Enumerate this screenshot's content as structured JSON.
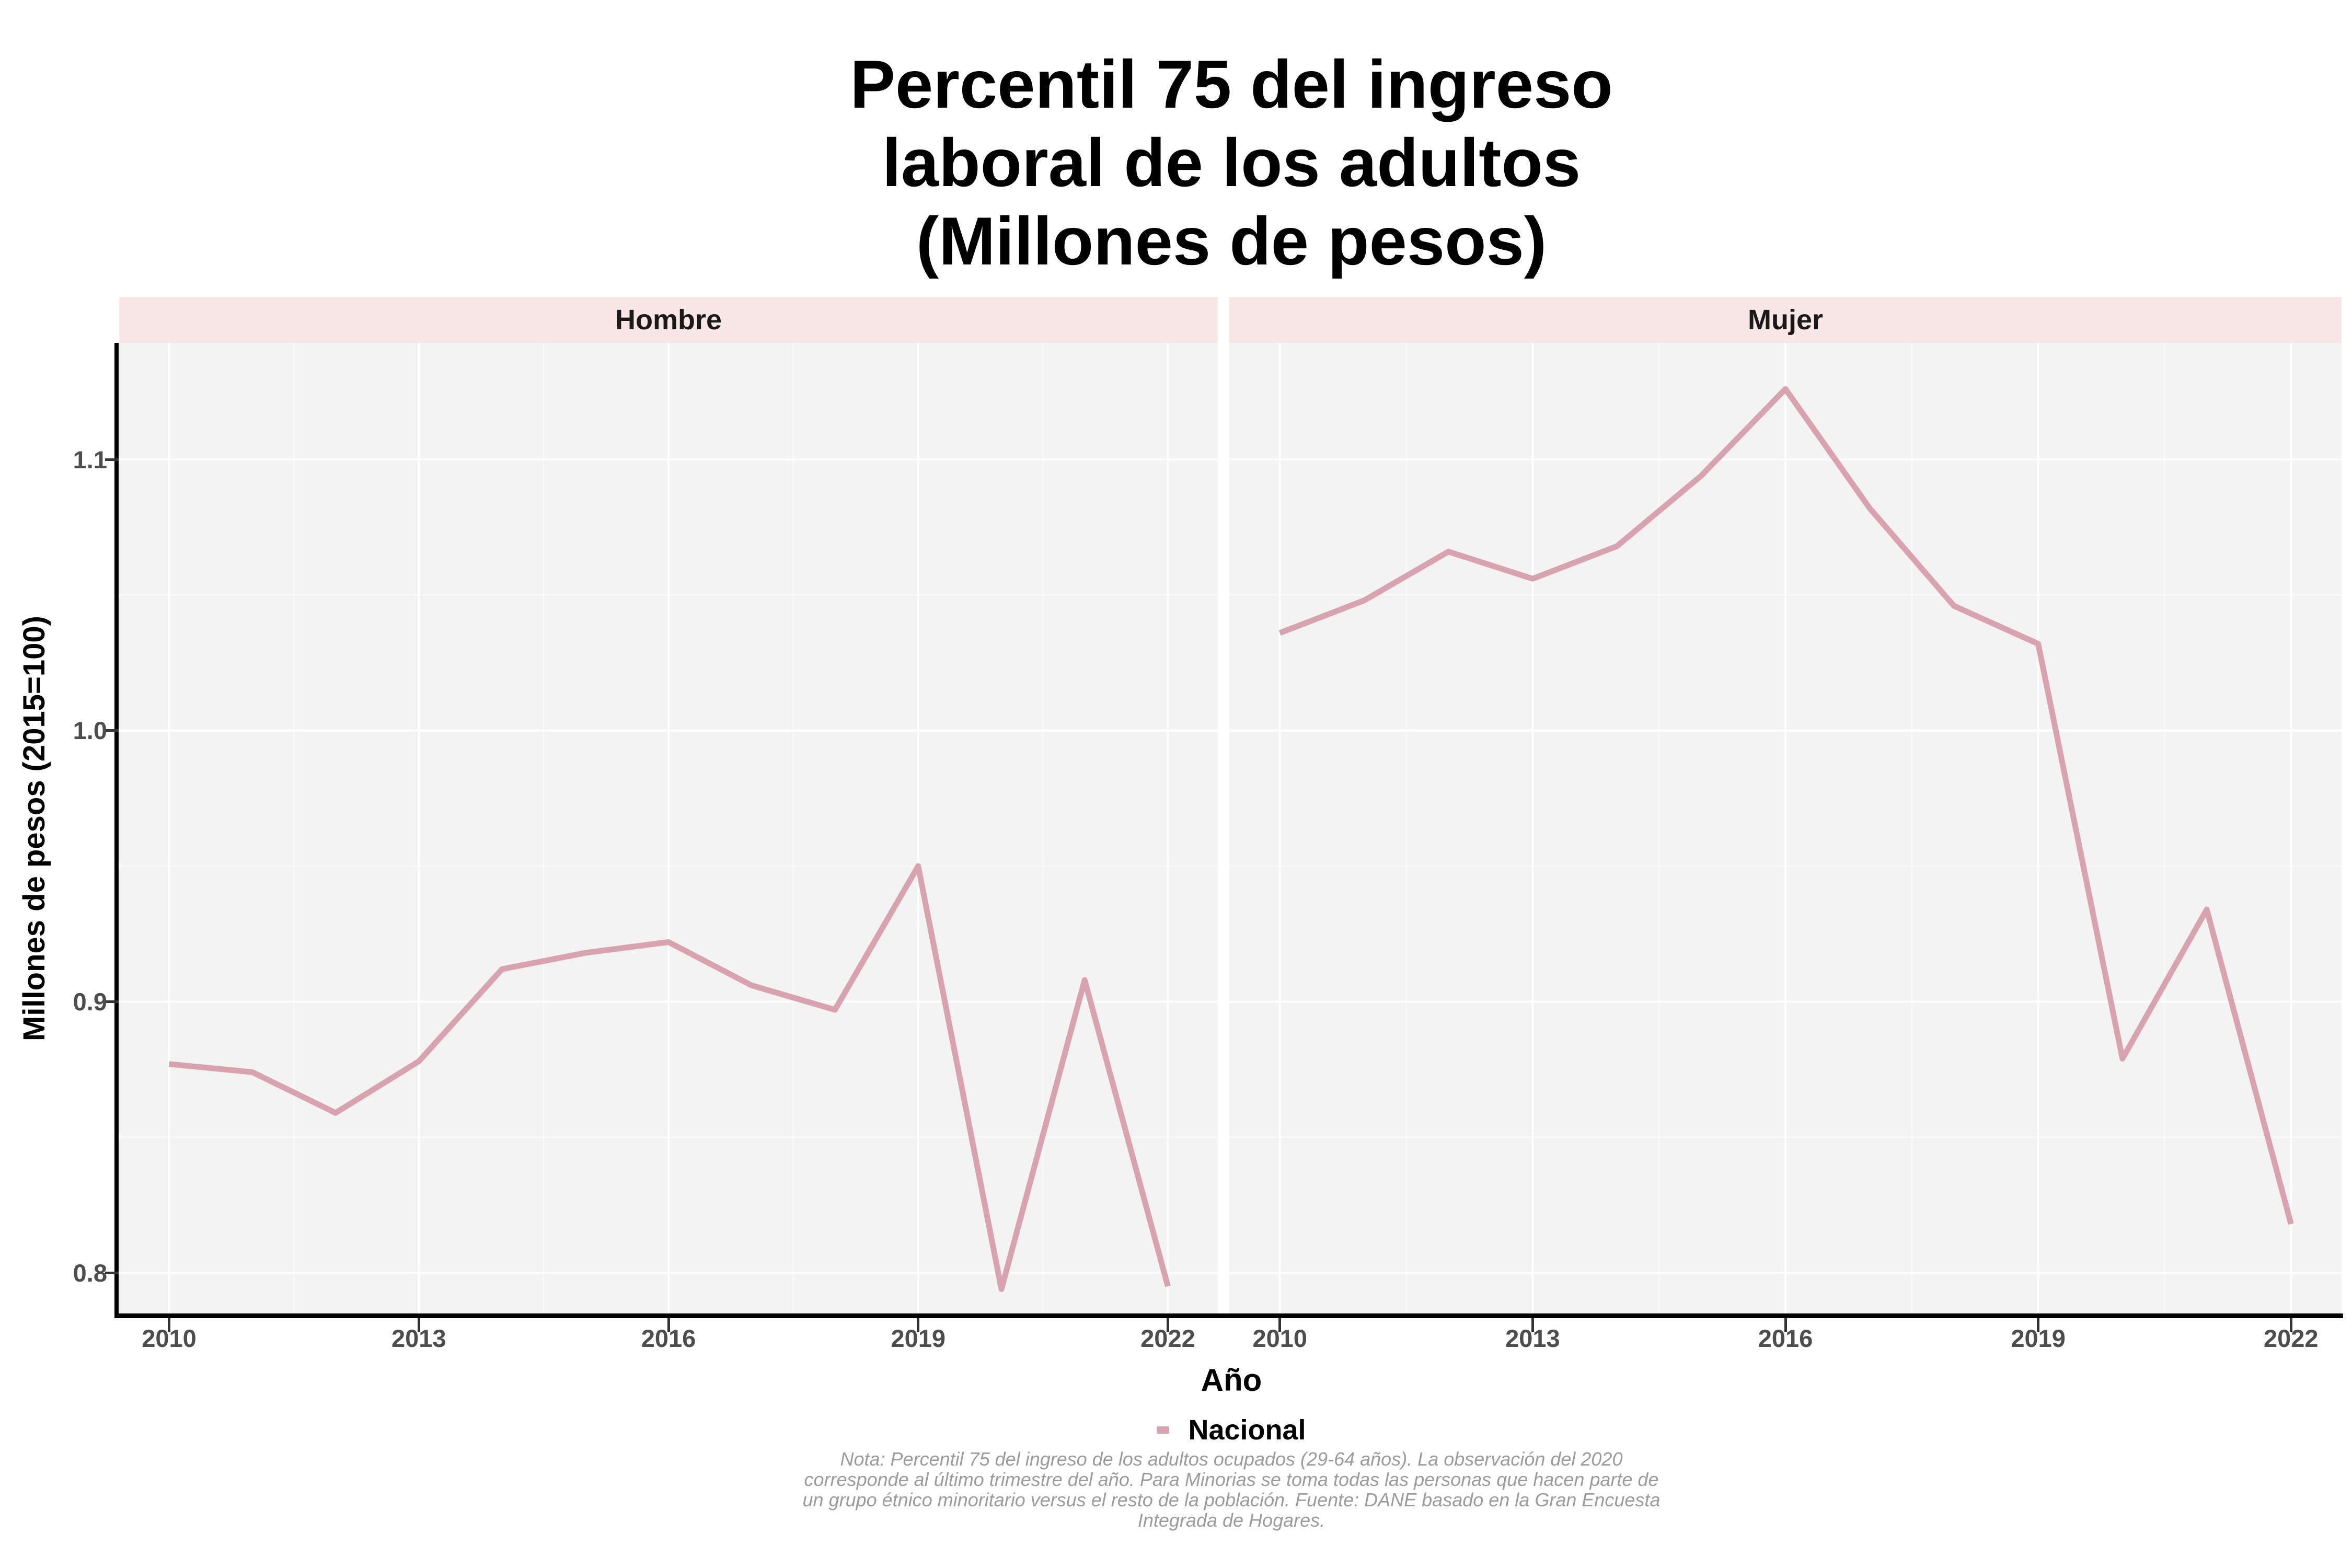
{
  "title": "Percentil 75 del ingreso\nlaboral de los adultos\n(Millones de pesos)",
  "axes": {
    "x_title": "Año",
    "y_title": "Millones de pesos (2015=100)",
    "x_tick_labels": [
      "2010",
      "2013",
      "2016",
      "2019",
      "2022"
    ],
    "y_tick_labels": [
      "0.8",
      "0.9",
      "1.0",
      "1.1"
    ]
  },
  "legend": {
    "label": "Nacional"
  },
  "note_lines": [
    "Nota: Percentil 75 del ingreso de los adultos ocupados (29-64 años). La observación del 2020",
    "corresponde al último trimestre del año. Para Minorias se toma todas las personas que hacen parte de",
    "un grupo étnico minoritario versus el resto de la población. Fuente: DANE basado en la Gran Encuesta",
    "Integrada de Hogares."
  ],
  "colors": {
    "line": "#D8A2AF",
    "strip_bg": "#F9E6E7",
    "panel_bg": "#F4F3F3",
    "grid_major": "rgba(255,255,255,0.92)",
    "grid_minor": "rgba(255,255,255,0.55)",
    "axis_line": "#000000",
    "tick_mark": "#333333",
    "axis_text": "#4d4d4d",
    "strip_text": "#1a1a1a",
    "note_text": "#9B9B9B"
  },
  "chart_data": {
    "type": "line",
    "title": "Percentil 75 del ingreso laboral de los adultos (Millones de pesos)",
    "xlabel": "Año",
    "ylabel": "Millones de pesos (2015=100)",
    "facets": [
      "Hombre",
      "Mujer"
    ],
    "x": [
      2010,
      2011,
      2012,
      2013,
      2014,
      2015,
      2016,
      2017,
      2018,
      2019,
      2020,
      2021,
      2022
    ],
    "series": [
      {
        "name": "Hombre",
        "legend": "Nacional",
        "values": [
          0.877,
          0.874,
          0.859,
          0.878,
          0.912,
          0.918,
          0.922,
          0.906,
          0.897,
          0.95,
          0.794,
          0.908,
          0.795
        ]
      },
      {
        "name": "Mujer",
        "legend": "Nacional",
        "values": [
          1.036,
          1.048,
          1.066,
          1.056,
          1.068,
          1.094,
          1.126,
          1.082,
          1.046,
          1.032,
          0.879,
          0.934,
          0.818
        ]
      }
    ],
    "xlim": [
      2009.4,
      2022.6
    ],
    "ylim": [
      0.785,
      1.143
    ],
    "x_breaks": [
      2010,
      2013,
      2016,
      2019,
      2022
    ],
    "x_minor_breaks": [
      2011.5,
      2014.5,
      2017.5,
      2020.5
    ],
    "y_breaks": [
      0.8,
      0.9,
      1.0,
      1.1
    ],
    "y_minor_breaks": [
      0.85,
      0.95,
      1.05
    ],
    "grid": true,
    "legend_position": "bottom"
  }
}
